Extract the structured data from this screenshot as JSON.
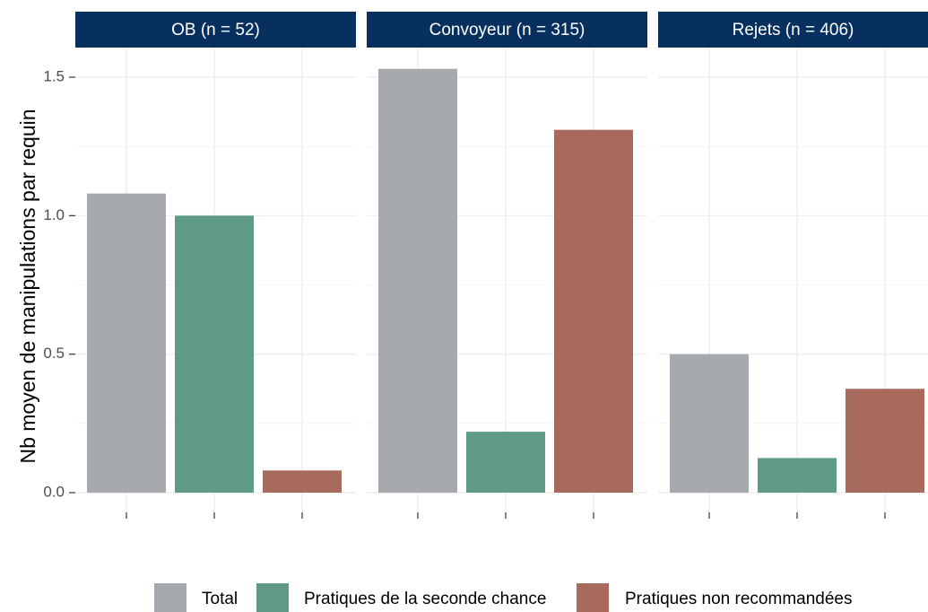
{
  "chart_data": {
    "type": "bar",
    "ylabel": "Nb moyen de manipulations par requin",
    "xlabel": "",
    "ylim": [
      0,
      1.6
    ],
    "yticks": [
      0.0,
      0.5,
      1.0,
      1.5
    ],
    "ytick_labels": [
      "0.0",
      "0.5",
      "1.0",
      "1.5"
    ],
    "grid": true,
    "legend_position": "bottom",
    "categories": [
      "Total",
      "Pratiques de la seconde chance",
      "Pratiques non recommandées"
    ],
    "colors": {
      "Total": "#a6a9ae",
      "Pratiques de la seconde chance": "#5e9a84",
      "Pratiques non recommandées": "#a86a5c",
      "strip_background": "#07305e"
    },
    "panels": [
      {
        "label": "OB (n = 52)",
        "values": [
          1.08,
          1.0,
          0.08
        ]
      },
      {
        "label": "Convoyeur (n = 315)",
        "values": [
          1.53,
          0.22,
          1.31
        ]
      },
      {
        "label": "Rejets (n = 406)",
        "values": [
          0.5,
          0.125,
          0.375
        ]
      }
    ]
  }
}
